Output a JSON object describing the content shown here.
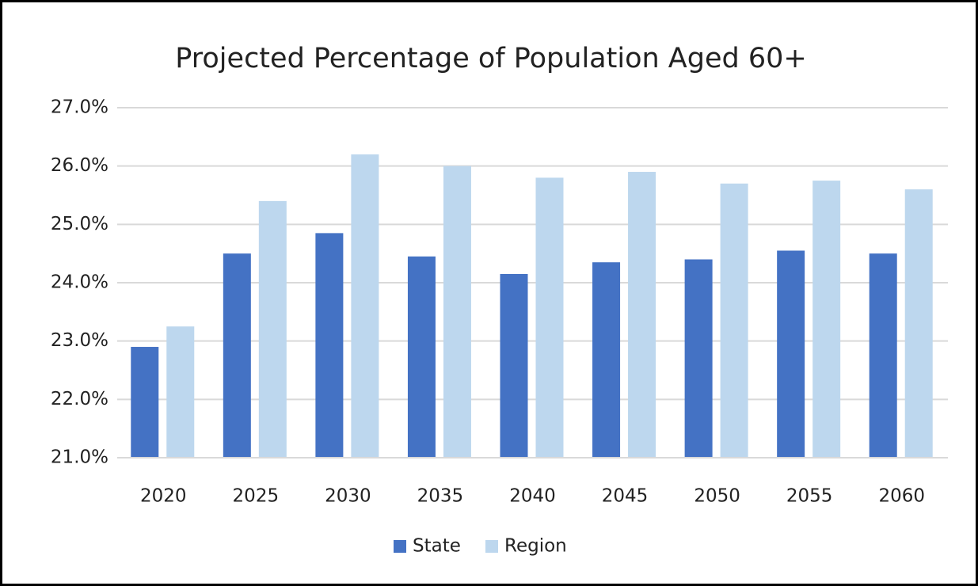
{
  "chart_data": {
    "type": "bar",
    "title": "Projected Percentage of Population Aged 60+",
    "categories": [
      "2020",
      "2025",
      "2030",
      "2035",
      "2040",
      "2045",
      "2050",
      "2055",
      "2060"
    ],
    "series": [
      {
        "name": "State",
        "color": "#4472c4",
        "values": [
          22.9,
          24.5,
          24.85,
          24.45,
          24.15,
          24.35,
          24.4,
          24.55,
          24.5
        ]
      },
      {
        "name": "Region",
        "color": "#bdd7ee",
        "values": [
          23.25,
          25.4,
          26.2,
          26.0,
          25.8,
          25.9,
          25.7,
          25.75,
          25.6
        ]
      }
    ],
    "ylim": [
      21,
      27
    ],
    "yticks": [
      {
        "value": 21,
        "label": "21.0%"
      },
      {
        "value": 22,
        "label": "22.0%"
      },
      {
        "value": 23,
        "label": "23.0%"
      },
      {
        "value": 24,
        "label": "24.0%"
      },
      {
        "value": 25,
        "label": "25.0%"
      },
      {
        "value": 26,
        "label": "26.0%"
      },
      {
        "value": 27,
        "label": "27.0%"
      }
    ],
    "grid": true,
    "legend": "bottom"
  }
}
